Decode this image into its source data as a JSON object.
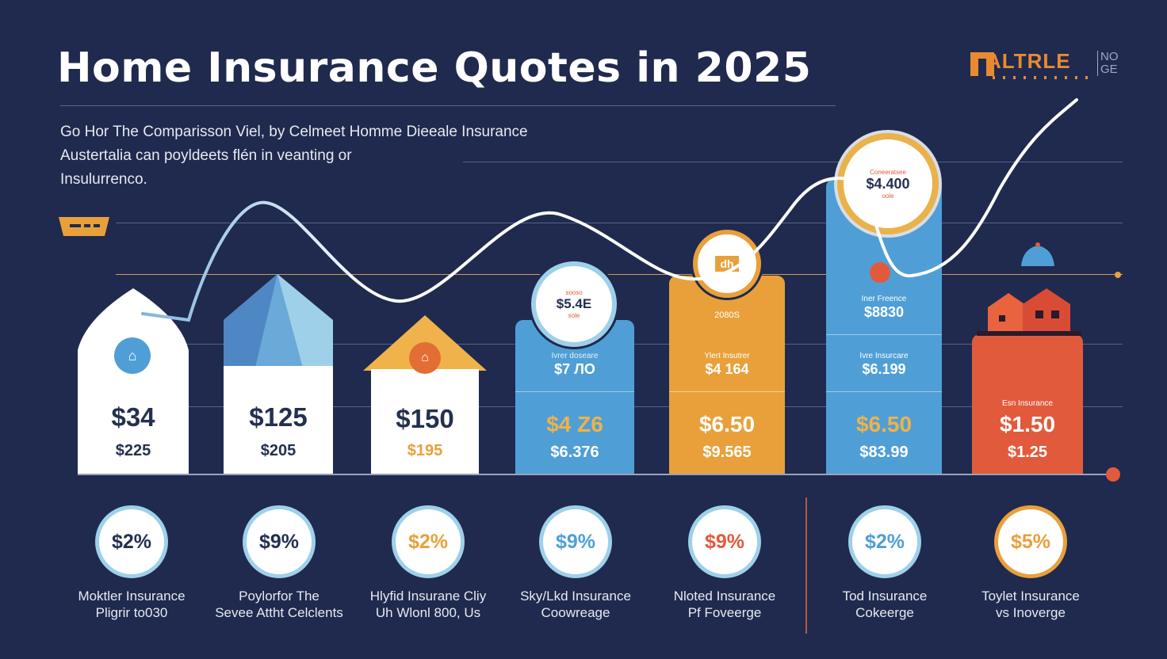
{
  "header": {
    "title": "Home Insurance Quotes in 2025",
    "subtitle_lines": [
      "Go Hor The Comparisson Viel, by Celmeet  Homme Dieeale Insurance",
      "Austertalia can poyldeets flén in veanting or",
      "Insulurrenco."
    ]
  },
  "logo": {
    "text": "ALTRLE",
    "side_text_1": "NO",
    "side_text_2": "GE"
  },
  "colors": {
    "background": "#1f2a4e",
    "white": "#ffffff",
    "light_blue": "#9ed0ea",
    "blue": "#4f9fd6",
    "orange": "#e9a03b",
    "red": "#e25a3c",
    "navy_text": "#24304f"
  },
  "bars": [
    {
      "value_main": "$34",
      "value_sub": "$225",
      "icon": "house-icon",
      "color": "#ffffff"
    },
    {
      "value_main": "$125",
      "value_sub": "$205",
      "icon": "house-roof-icon",
      "color": "#ffffff"
    },
    {
      "value_main": "$150",
      "value_sub": "$195",
      "icon": "house-icon",
      "color": "#ffffff"
    },
    {
      "badge_small": "sooso",
      "badge_value": "$5.4E",
      "badge_sub": "sole",
      "top_label": "Ivrer doseare",
      "top_value": "$7 ЛО",
      "value_main": "$4 Z6",
      "value_sub": "$6.376",
      "color": "#4f9fd6"
    },
    {
      "badge_value": "dh",
      "top_label_0": "2080S",
      "top_label": "Ylert Insutrer",
      "top_value": "$4 164",
      "value_main": "$6.50",
      "value_sub": "$9.565",
      "color": "#e9a03b"
    },
    {
      "badge_small": "Coneeratsee",
      "badge_value": "$4.400",
      "badge_sub": "oole",
      "top_label_0": "Iner Freence",
      "top_value_0": "$8830",
      "top_label": "Ivre Insurcare",
      "top_value": "$6.199",
      "value_main": "$6.50",
      "value_sub": "$83.99",
      "color": "#4f9fd6"
    },
    {
      "top_label": "Esn Insurance",
      "value_main": "$1.50",
      "value_sub": "$1.25",
      "icon": "house-icon",
      "color": "#e25a3c"
    }
  ],
  "percent_circles": [
    {
      "value": "$2%",
      "color": "#24304f",
      "ring": "#9ed0ea",
      "caption_1": "Moktler Insurance",
      "caption_2": "Pligrir to030"
    },
    {
      "value": "$9%",
      "color": "#24304f",
      "ring": "#9ed0ea",
      "caption_1": "Poylorfor  The",
      "caption_2": "Sevee Attht Celclents"
    },
    {
      "value": "$2%",
      "color": "#e9a03b",
      "ring": "#9ed0ea",
      "caption_1": "Hlyfid Insurane Cliy",
      "caption_2": "Uh Wlonl 800, Us"
    },
    {
      "value": "$9%",
      "color": "#4f9fd6",
      "ring": "#9ed0ea",
      "caption_1": "Sky/Lkd Insurance",
      "caption_2": "Coowreage"
    },
    {
      "value": "$9%",
      "color": "#e25a3c",
      "ring": "#9ed0ea",
      "caption_1": "Nloted Insurance",
      "caption_2": "Pf Foveerge"
    },
    {
      "value": "$2%",
      "color": "#4f9fd6",
      "ring": "#9ed0ea",
      "caption_1": "Tod  Insurance",
      "caption_2": "Cokeerge"
    },
    {
      "value": "$5%",
      "color": "#e9a03b",
      "ring": "#e9a03b",
      "caption_1": "Toylet Insurance",
      "caption_2": "vs Inoverge"
    }
  ]
}
